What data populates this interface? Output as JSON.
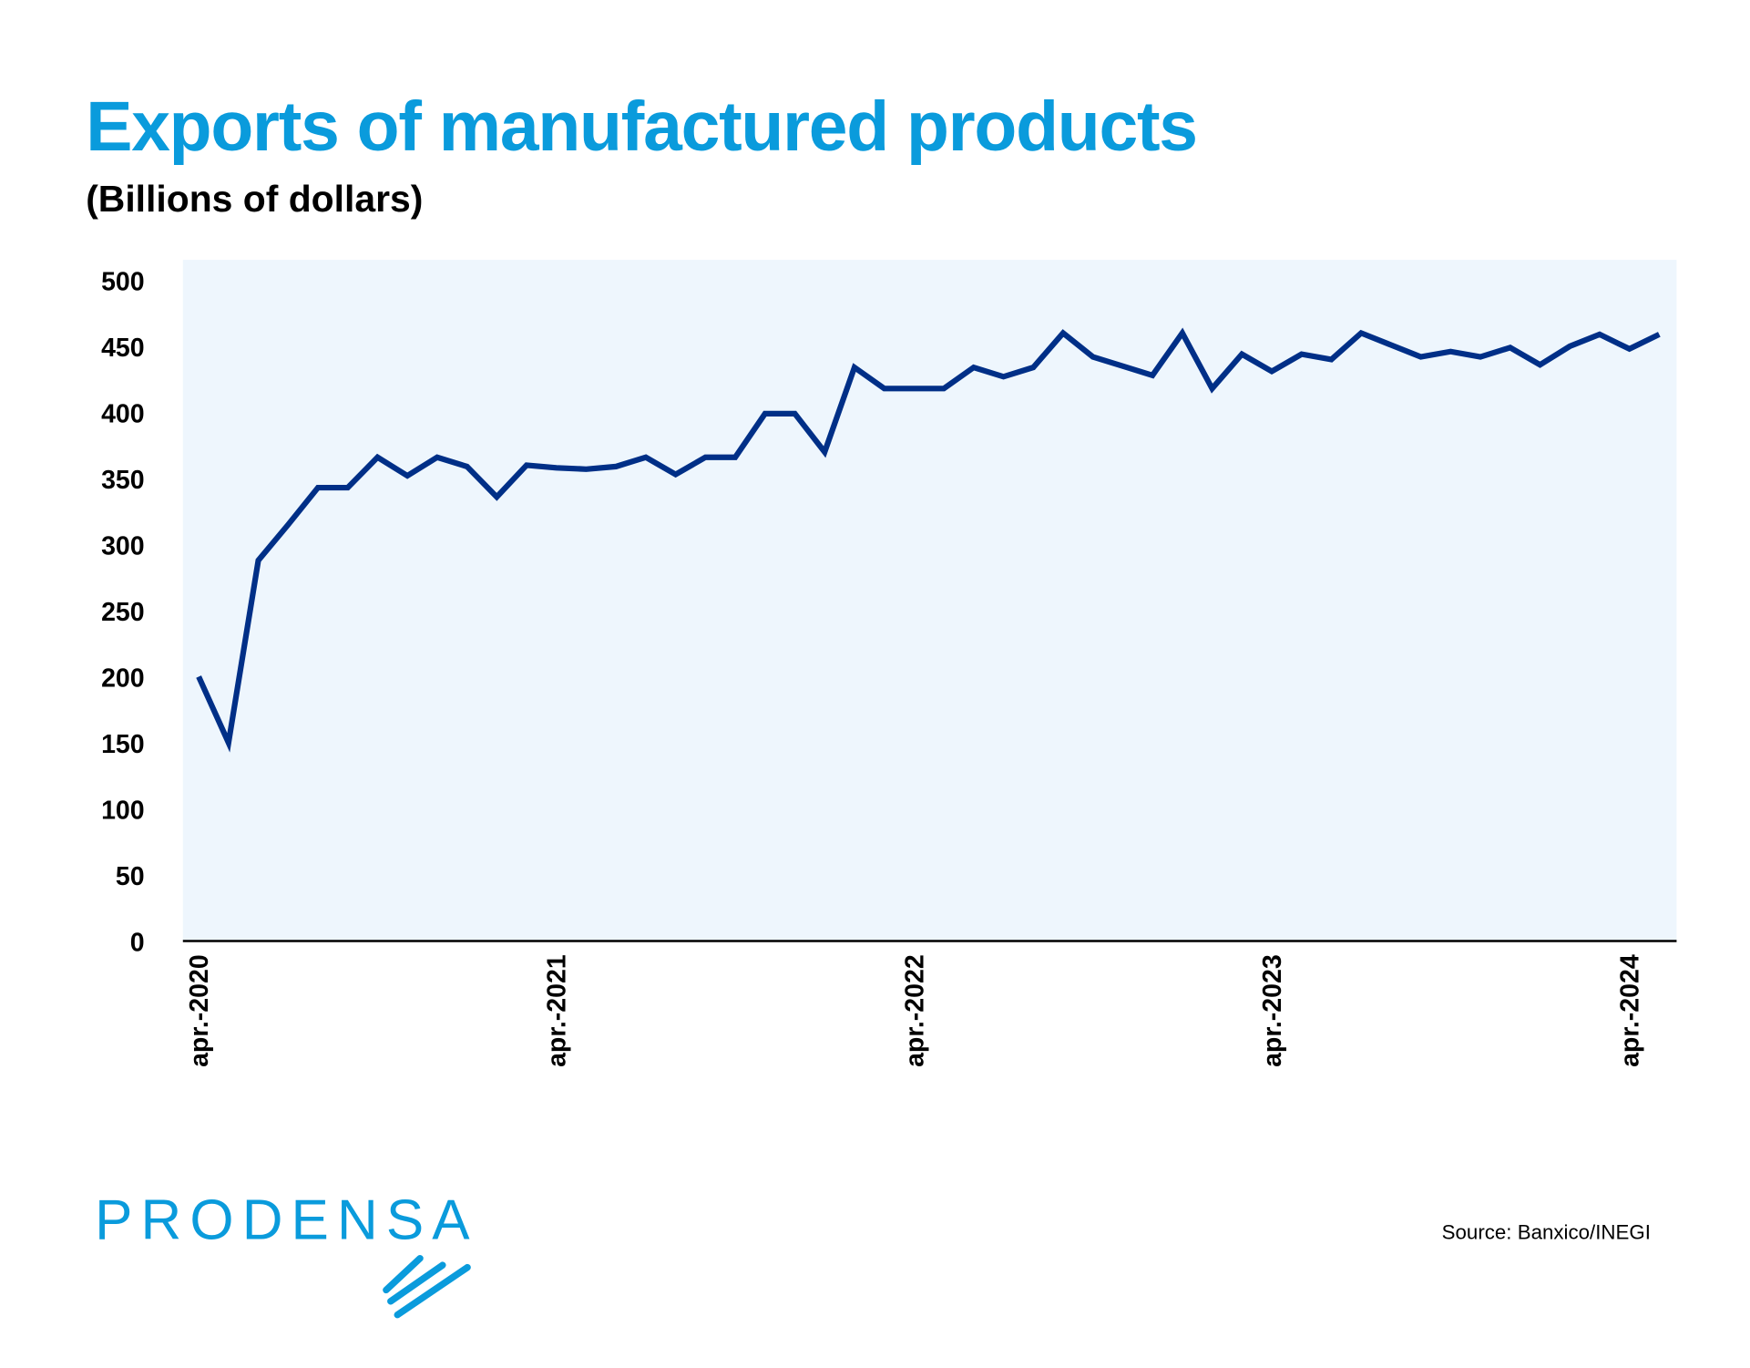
{
  "chart_data": {
    "type": "line",
    "title": "Exports of manufactured products",
    "subtitle": "(Billions of dollars)",
    "xlabel": "",
    "ylabel": "",
    "ylim": [
      0,
      500
    ],
    "yticks": [
      "0",
      "50",
      "100",
      "150",
      "200",
      "250",
      "300",
      "350",
      "400",
      "450",
      "500"
    ],
    "xtick_labels": [
      "apr.-2020",
      "apr.-2021",
      "apr.-2022",
      "apr.-2023",
      "apr.-2024"
    ],
    "x_start": "2020-04",
    "x_end": "2024-05",
    "x_frequency": "monthly",
    "values": [
      200,
      150,
      288,
      315,
      343,
      343,
      366,
      352,
      366,
      359,
      336,
      360,
      358,
      357,
      359,
      366,
      353,
      366,
      366,
      399,
      399,
      370,
      434,
      418,
      418,
      418,
      434,
      427,
      434,
      460,
      442,
      435,
      428,
      460,
      418,
      444,
      431,
      444,
      440,
      460,
      451,
      442,
      446,
      442,
      449,
      436,
      450,
      459,
      448,
      459
    ],
    "grid": false,
    "legend": "none",
    "colors": {
      "line": "#002f87",
      "plot_background": "#eef6fd",
      "title": "#0a9bdc"
    }
  },
  "source": "Source: Banxico/INEGI",
  "logo": {
    "text": "PRODENSA"
  }
}
